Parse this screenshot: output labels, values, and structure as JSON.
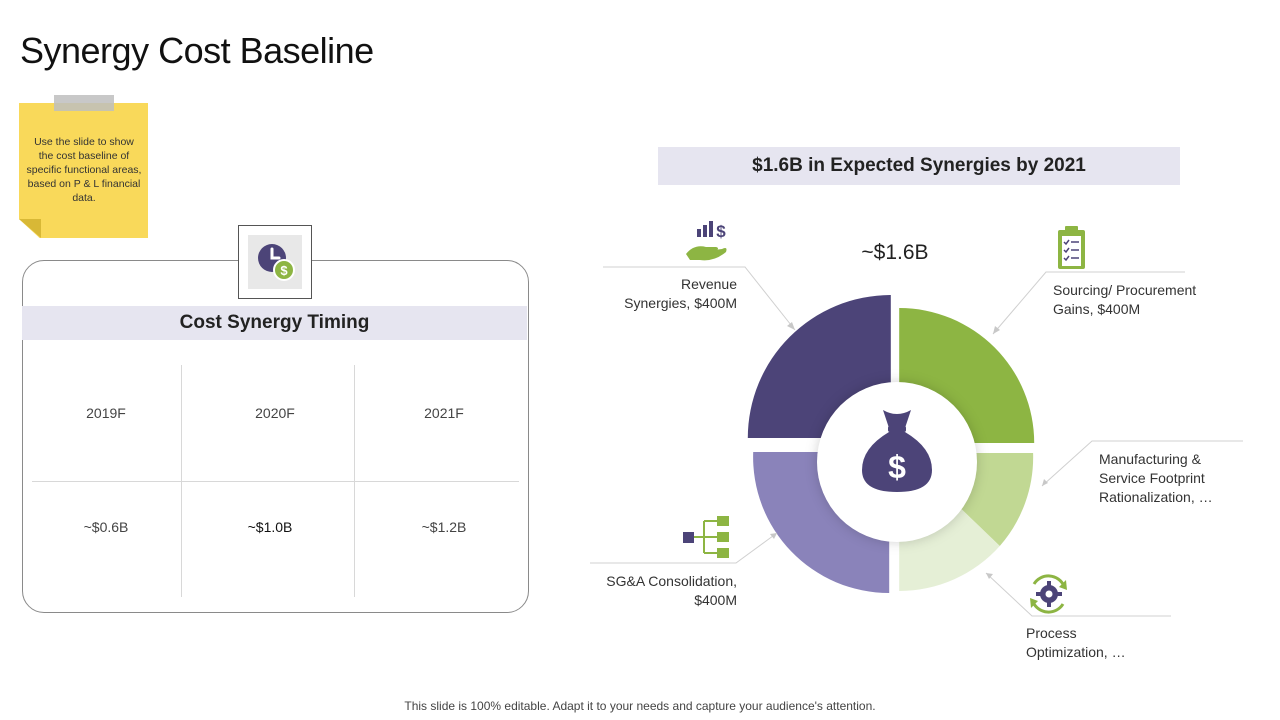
{
  "title": "Synergy Cost Baseline",
  "note": {
    "text": "Use the slide to show the cost baseline of specific functional areas, based on P & L financial data."
  },
  "timing": {
    "header": "Cost Synergy Timing",
    "icon": "clock-dollar-icon",
    "years": [
      "2019F",
      "2020F",
      "2021F"
    ],
    "values": [
      "~$0.6B",
      "~$1.0B",
      "~$1.2B"
    ]
  },
  "synergies": {
    "banner": "$1.6B in Expected Synergies by 2021",
    "total": "~$1.6B",
    "center_icon": "money-bag-icon",
    "labels": {
      "revenue_l1": "Revenue",
      "revenue_l2": "Synergies, $400M",
      "sourcing_l1": "Sourcing/ Procurement",
      "sourcing_l2": "Gains, $400M",
      "manufacturing_l1": "Manufacturing &",
      "manufacturing_l2": "Service Footprint",
      "manufacturing_l3": "Rationalization, …",
      "sga_l1": "SG&A Consolidation,",
      "sga_l2": "$400M",
      "process_l1": "Process",
      "process_l2": "Optimization, …"
    },
    "icons": [
      "growth-hand-icon",
      "clipboard-checklist-icon",
      "hierarchy-icon",
      "gear-cycle-icon"
    ],
    "colors": {
      "dark_purple": "#4c4478",
      "light_purple": "#8a83ba",
      "dark_green": "#8db543",
      "mid_green": "#c1d893",
      "pale_green": "#e5efd6"
    }
  },
  "footer": "This slide is 100% editable. Adapt it to your needs and capture your audience's attention."
}
